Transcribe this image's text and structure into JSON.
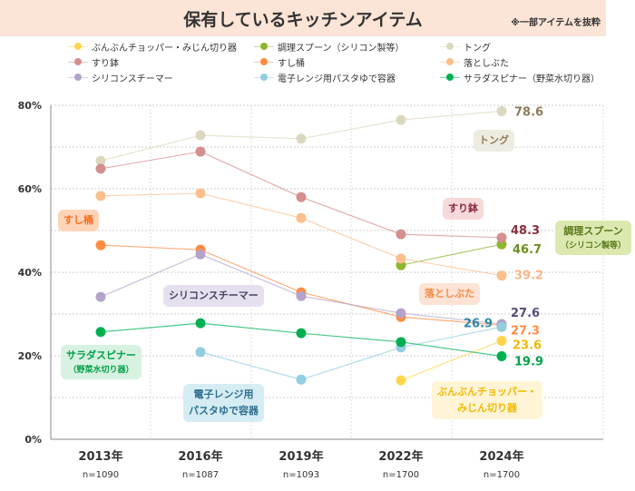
{
  "title": "保有しているキッチンアイテム",
  "note": "※一部アイテムを抜粋",
  "chart_data": {
    "type": "line",
    "title": "保有しているキッチンアイテム",
    "categories": [
      "2013年",
      "2016年",
      "2019年",
      "2022年",
      "2024年"
    ],
    "sample_sizes": [
      "n=1090",
      "n=1087",
      "n=1093",
      "n=1700",
      "n=1700"
    ],
    "ylim": [
      0,
      80
    ],
    "yticks": [
      "0%",
      "20%",
      "40%",
      "60%",
      "80%"
    ],
    "grid": true,
    "legend_position": "top",
    "series": [
      {
        "name": "ぶんぶんチョッパー・みじん切り器",
        "color": "#ffd54f",
        "values": [
          null,
          null,
          null,
          14.1,
          23.6
        ],
        "label": "23.6",
        "callout": [
          "ぶんぶんチョッパー・",
          "みじん切り器"
        ]
      },
      {
        "name": "調理スプーン（シリコン製等）",
        "color": "#8fb52e",
        "values": [
          null,
          null,
          null,
          41.7,
          46.7
        ],
        "label": "46.7",
        "callout": [
          "調理スプーン",
          "（シリコン製等）"
        ]
      },
      {
        "name": "トング",
        "color": "#dcd8c0",
        "values": [
          66.7,
          72.8,
          72.0,
          76.5,
          78.6
        ],
        "label": "78.6",
        "callout": [
          "トング"
        ]
      },
      {
        "name": "すり鉢",
        "color": "#d48f8f",
        "values": [
          64.8,
          68.9,
          58.0,
          49.1,
          48.3
        ],
        "label": "48.3",
        "callout": [
          "すり鉢"
        ]
      },
      {
        "name": "すし桶",
        "color": "#ff8c42",
        "values": [
          46.5,
          45.4,
          35.2,
          29.3,
          27.3
        ],
        "label": "27.3",
        "callout": [
          "すし桶"
        ]
      },
      {
        "name": "落としぶた",
        "color": "#fbbf8e",
        "values": [
          58.3,
          58.9,
          53.0,
          43.3,
          39.2
        ],
        "label": "39.2",
        "callout": [
          "落としぶた"
        ]
      },
      {
        "name": "シリコンスチーマー",
        "color": "#b3a3c9",
        "values": [
          34.1,
          44.3,
          34.3,
          30.2,
          27.6
        ],
        "label": "27.6",
        "callout": [
          "シリコンスチーマー"
        ]
      },
      {
        "name": "電子レンジ用パスタゆで容器",
        "color": "#92cde0",
        "values": [
          null,
          20.9,
          14.3,
          22.0,
          26.9
        ],
        "label": "26.9",
        "callout": [
          "電子レンジ用",
          "パスタゆで容器"
        ]
      },
      {
        "name": "サラダスピナー（野菜水切り器）",
        "color": "#00b050",
        "values": [
          25.7,
          27.8,
          25.4,
          23.3,
          19.9
        ],
        "label": "19.9",
        "callout": [
          "サラダスピナー",
          "（野菜水切り器）"
        ]
      }
    ]
  }
}
